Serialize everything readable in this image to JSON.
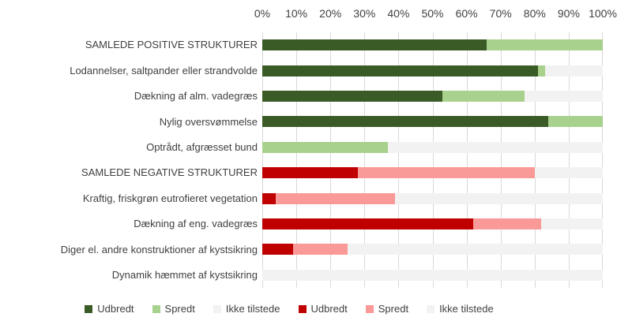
{
  "axis": {
    "tick_labels": [
      "0%",
      "10%",
      "20%",
      "30%",
      "40%",
      "50%",
      "60%",
      "70%",
      "80%",
      "90%",
      "100%"
    ]
  },
  "legend": {
    "items": [
      {
        "label": "Udbredt",
        "color": "#3B5B26"
      },
      {
        "label": "Spredt",
        "color": "#A9D18E"
      },
      {
        "label": "Ikke tilstede",
        "color": "#F2F2F2"
      },
      {
        "label": "Udbredt",
        "color": "#C00000"
      },
      {
        "label": "Spredt",
        "color": "#FA9A98"
      },
      {
        "label": "Ikke tilstede",
        "color": "#F2F2F2"
      }
    ]
  },
  "chart_data": {
    "type": "bar",
    "orientation": "horizontal",
    "stacked": true,
    "xlim": [
      0,
      100
    ],
    "x_tick_labels": [
      "0%",
      "10%",
      "20%",
      "30%",
      "40%",
      "50%",
      "60%",
      "70%",
      "80%",
      "90%",
      "100%"
    ],
    "grid": true,
    "gridline_color": "#D9D9D9",
    "legend_position": "bottom",
    "colors": {
      "positive": {
        "udbredt": "#3B5B26",
        "spredt": "#A9D18E",
        "ikke_tilstede": "#F2F2F2"
      },
      "negative": {
        "udbredt": "#C00000",
        "spredt": "#FA9A98",
        "ikke_tilstede": "#F2F2F2"
      }
    },
    "rows": [
      {
        "label": "SAMLEDE POSITIVE STRUKTURER",
        "group": "positive",
        "udbredt": 66,
        "spredt": 34,
        "ikke_tilstede": 0
      },
      {
        "label": "Lodannelser, saltpander eller strandvolde",
        "group": "positive",
        "udbredt": 81,
        "spredt": 2,
        "ikke_tilstede": 17
      },
      {
        "label": "Dækning af alm. vadegræs",
        "group": "positive",
        "udbredt": 53,
        "spredt": 24,
        "ikke_tilstede": 23
      },
      {
        "label": "Nylig oversvømmelse",
        "group": "positive",
        "udbredt": 84,
        "spredt": 16,
        "ikke_tilstede": 0
      },
      {
        "label": "Optrådt, afgræsset bund",
        "group": "positive",
        "udbredt": 0,
        "spredt": 37,
        "ikke_tilstede": 63
      },
      {
        "label": "SAMLEDE NEGATIVE STRUKTURER",
        "group": "negative",
        "udbredt": 28,
        "spredt": 52,
        "ikke_tilstede": 20
      },
      {
        "label": "Kraftig, friskgrøn eutrofieret vegetation",
        "group": "negative",
        "udbredt": 4,
        "spredt": 35,
        "ikke_tilstede": 61
      },
      {
        "label": "Dækning af eng. vadegræs",
        "group": "negative",
        "udbredt": 62,
        "spredt": 20,
        "ikke_tilstede": 18
      },
      {
        "label": "Diger el. andre konstruktioner af kystsikring",
        "group": "negative",
        "udbredt": 9,
        "spredt": 16,
        "ikke_tilstede": 75
      },
      {
        "label": "Dynamik hæmmet af kystsikring",
        "group": "negative",
        "udbredt": 0,
        "spredt": 0,
        "ikke_tilstede": 100
      }
    ]
  }
}
